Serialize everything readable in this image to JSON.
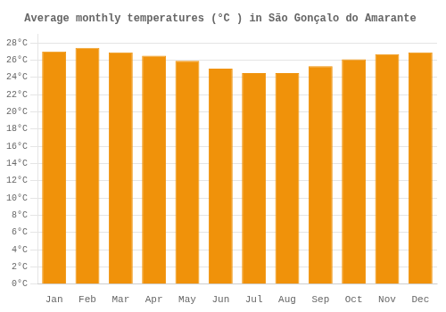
{
  "chart_data": {
    "type": "bar",
    "title": "Average monthly temperatures (°C ) in São Gonçalo do Amarante",
    "categories": [
      "Jan",
      "Feb",
      "Mar",
      "Apr",
      "May",
      "Jun",
      "Jul",
      "Aug",
      "Sep",
      "Oct",
      "Nov",
      "Dec"
    ],
    "values": [
      27.0,
      27.4,
      26.9,
      26.5,
      25.9,
      25.0,
      24.5,
      24.5,
      25.3,
      26.1,
      26.7,
      26.9
    ],
    "color": "#F0920A",
    "ylim": [
      0,
      29
    ],
    "yticks": [
      {
        "value": 0,
        "label": "0°C"
      },
      {
        "value": 2,
        "label": "2°C"
      },
      {
        "value": 4,
        "label": "4°C"
      },
      {
        "value": 6,
        "label": "6°C"
      },
      {
        "value": 8,
        "label": "8°C"
      },
      {
        "value": 10,
        "label": "10°C"
      },
      {
        "value": 12,
        "label": "12°C"
      },
      {
        "value": 14,
        "label": "14°C"
      },
      {
        "value": 16,
        "label": "16°C"
      },
      {
        "value": 18,
        "label": "18°C"
      },
      {
        "value": 20,
        "label": "20°C"
      },
      {
        "value": 22,
        "label": "22°C"
      },
      {
        "value": 24,
        "label": "24°C"
      },
      {
        "value": 26,
        "label": "26°C"
      },
      {
        "value": 28,
        "label": "28°C"
      }
    ],
    "grid": true
  }
}
